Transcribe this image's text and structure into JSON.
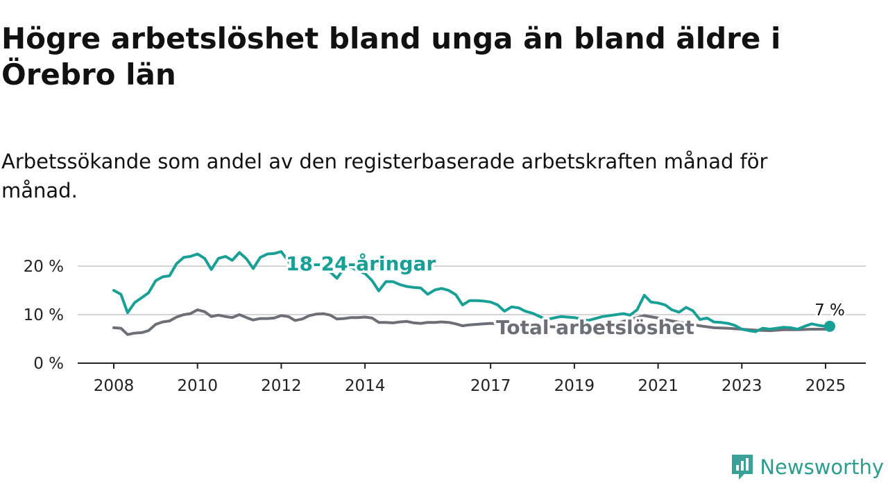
{
  "header": {
    "title": "Högre arbetslöshet bland unga än bland äldre i Örebro län",
    "subtitle": "Arbetssökande som andel av den registerbaserade arbetskraften månad för månad."
  },
  "brand": {
    "name": "Newsworthy",
    "icon": "newsworthy-logo-icon",
    "color": "#3aa199"
  },
  "chart_data": {
    "type": "line",
    "y_ticks": [
      "0 %",
      "10 %",
      "20 %"
    ],
    "x_ticks": [
      "2008",
      "2010",
      "2012",
      "2014",
      "2017",
      "2019",
      "2021",
      "2023",
      "2025"
    ],
    "xlim": [
      2008.0,
      2026.0
    ],
    "ylim": [
      0,
      23
    ],
    "grid": "horizontal",
    "end_label": "7 %",
    "series": [
      {
        "name": "Total arbetslöshet",
        "color": "#6e6e78",
        "x": [
          2008.0,
          2008.17,
          2008.33,
          2008.5,
          2008.67,
          2008.83,
          2009.0,
          2009.17,
          2009.33,
          2009.5,
          2009.67,
          2009.83,
          2010.0,
          2010.17,
          2010.33,
          2010.5,
          2010.67,
          2010.83,
          2011.0,
          2011.17,
          2011.33,
          2011.5,
          2011.67,
          2011.83,
          2012.0,
          2012.17,
          2012.33,
          2012.5,
          2012.67,
          2012.83,
          2013.0,
          2013.17,
          2013.33,
          2013.5,
          2013.67,
          2013.83,
          2014.0,
          2014.17,
          2014.33,
          2014.5,
          2014.67,
          2014.83,
          2015.0,
          2015.17,
          2015.33,
          2015.5,
          2015.67,
          2015.83,
          2016.0,
          2016.17,
          2016.33,
          2016.5,
          2016.67,
          2016.83,
          2017.0,
          2017.5,
          2018.0,
          2018.5,
          2019.0,
          2019.5,
          2020.0,
          2020.33,
          2020.67,
          2021.0,
          2021.33,
          2021.67,
          2022.0,
          2022.33,
          2022.67,
          2023.0,
          2023.33,
          2023.67,
          2024.0,
          2024.33,
          2024.67,
          2025.0
        ],
        "values": [
          7.3,
          7.2,
          5.9,
          6.2,
          6.3,
          6.7,
          8.0,
          8.5,
          8.7,
          9.5,
          10.0,
          10.2,
          11.0,
          10.6,
          9.6,
          9.9,
          9.6,
          9.4,
          10.0,
          9.4,
          8.9,
          9.2,
          9.2,
          9.3,
          9.8,
          9.6,
          8.8,
          9.1,
          9.8,
          10.1,
          10.2,
          9.9,
          9.1,
          9.2,
          9.4,
          9.4,
          9.5,
          9.3,
          8.4,
          8.4,
          8.3,
          8.5,
          8.6,
          8.3,
          8.2,
          8.4,
          8.4,
          8.5,
          8.4,
          8.1,
          7.7,
          7.9,
          8.0,
          8.1,
          8.2,
          8.0,
          7.7,
          7.5,
          7.4,
          7.5,
          8.2,
          9.0,
          9.8,
          9.3,
          8.7,
          8.2,
          7.7,
          7.3,
          7.2,
          7.0,
          6.8,
          6.7,
          6.9,
          6.9,
          7.0,
          7.0
        ]
      },
      {
        "name": "18-24-åringar",
        "color": "#18a096",
        "x": [
          2008.0,
          2008.17,
          2008.33,
          2008.5,
          2008.67,
          2008.83,
          2009.0,
          2009.17,
          2009.33,
          2009.5,
          2009.67,
          2009.83,
          2010.0,
          2010.17,
          2010.33,
          2010.5,
          2010.67,
          2010.83,
          2011.0,
          2011.17,
          2011.33,
          2011.5,
          2011.67,
          2011.83,
          2012.0,
          2012.17,
          2012.33,
          2012.5,
          2012.67,
          2012.83,
          2013.0,
          2013.17,
          2013.33,
          2013.5,
          2013.67,
          2013.83,
          2014.0,
          2014.17,
          2014.33,
          2014.5,
          2014.67,
          2014.83,
          2015.0,
          2015.17,
          2015.33,
          2015.5,
          2015.67,
          2015.83,
          2016.0,
          2016.17,
          2016.33,
          2016.5,
          2016.67,
          2016.83,
          2017.0,
          2017.17,
          2017.33,
          2017.5,
          2017.67,
          2017.83,
          2018.0,
          2018.33,
          2018.67,
          2019.0,
          2019.33,
          2019.67,
          2020.0,
          2020.17,
          2020.33,
          2020.5,
          2020.67,
          2020.83,
          2021.0,
          2021.17,
          2021.33,
          2021.5,
          2021.67,
          2021.83,
          2022.0,
          2022.17,
          2022.33,
          2022.5,
          2022.67,
          2022.83,
          2023.0,
          2023.17,
          2023.33,
          2023.5,
          2023.67,
          2023.83,
          2024.0,
          2024.17,
          2024.33,
          2024.5,
          2024.67,
          2024.83,
          2025.0
        ],
        "values": [
          15.0,
          14.2,
          10.4,
          12.5,
          13.5,
          14.5,
          17.0,
          17.8,
          18.0,
          20.5,
          21.8,
          22.0,
          22.5,
          21.6,
          19.3,
          21.6,
          22.0,
          21.2,
          22.8,
          21.5,
          19.5,
          21.8,
          22.5,
          22.6,
          23.0,
          21.0,
          19.0,
          20.8,
          21.2,
          20.0,
          19.5,
          18.8,
          17.5,
          19.5,
          19.8,
          19.0,
          18.5,
          17.0,
          14.9,
          16.8,
          16.8,
          16.2,
          15.8,
          15.6,
          15.5,
          14.2,
          15.1,
          15.4,
          15.0,
          14.1,
          12.0,
          12.9,
          12.9,
          12.8,
          12.6,
          12.0,
          10.7,
          11.6,
          11.4,
          10.7,
          10.3,
          9.0,
          9.6,
          9.4,
          8.8,
          9.6,
          10.0,
          10.2,
          9.9,
          11.0,
          14.0,
          12.6,
          12.4,
          12.0,
          11.0,
          10.5,
          11.5,
          10.8,
          9.0,
          9.3,
          8.5,
          8.4,
          8.2,
          7.8,
          7.0,
          6.7,
          6.5,
          7.2,
          7.0,
          7.2,
          7.4,
          7.3,
          7.0,
          7.6,
          8.1,
          7.8,
          7.6
        ]
      }
    ]
  }
}
